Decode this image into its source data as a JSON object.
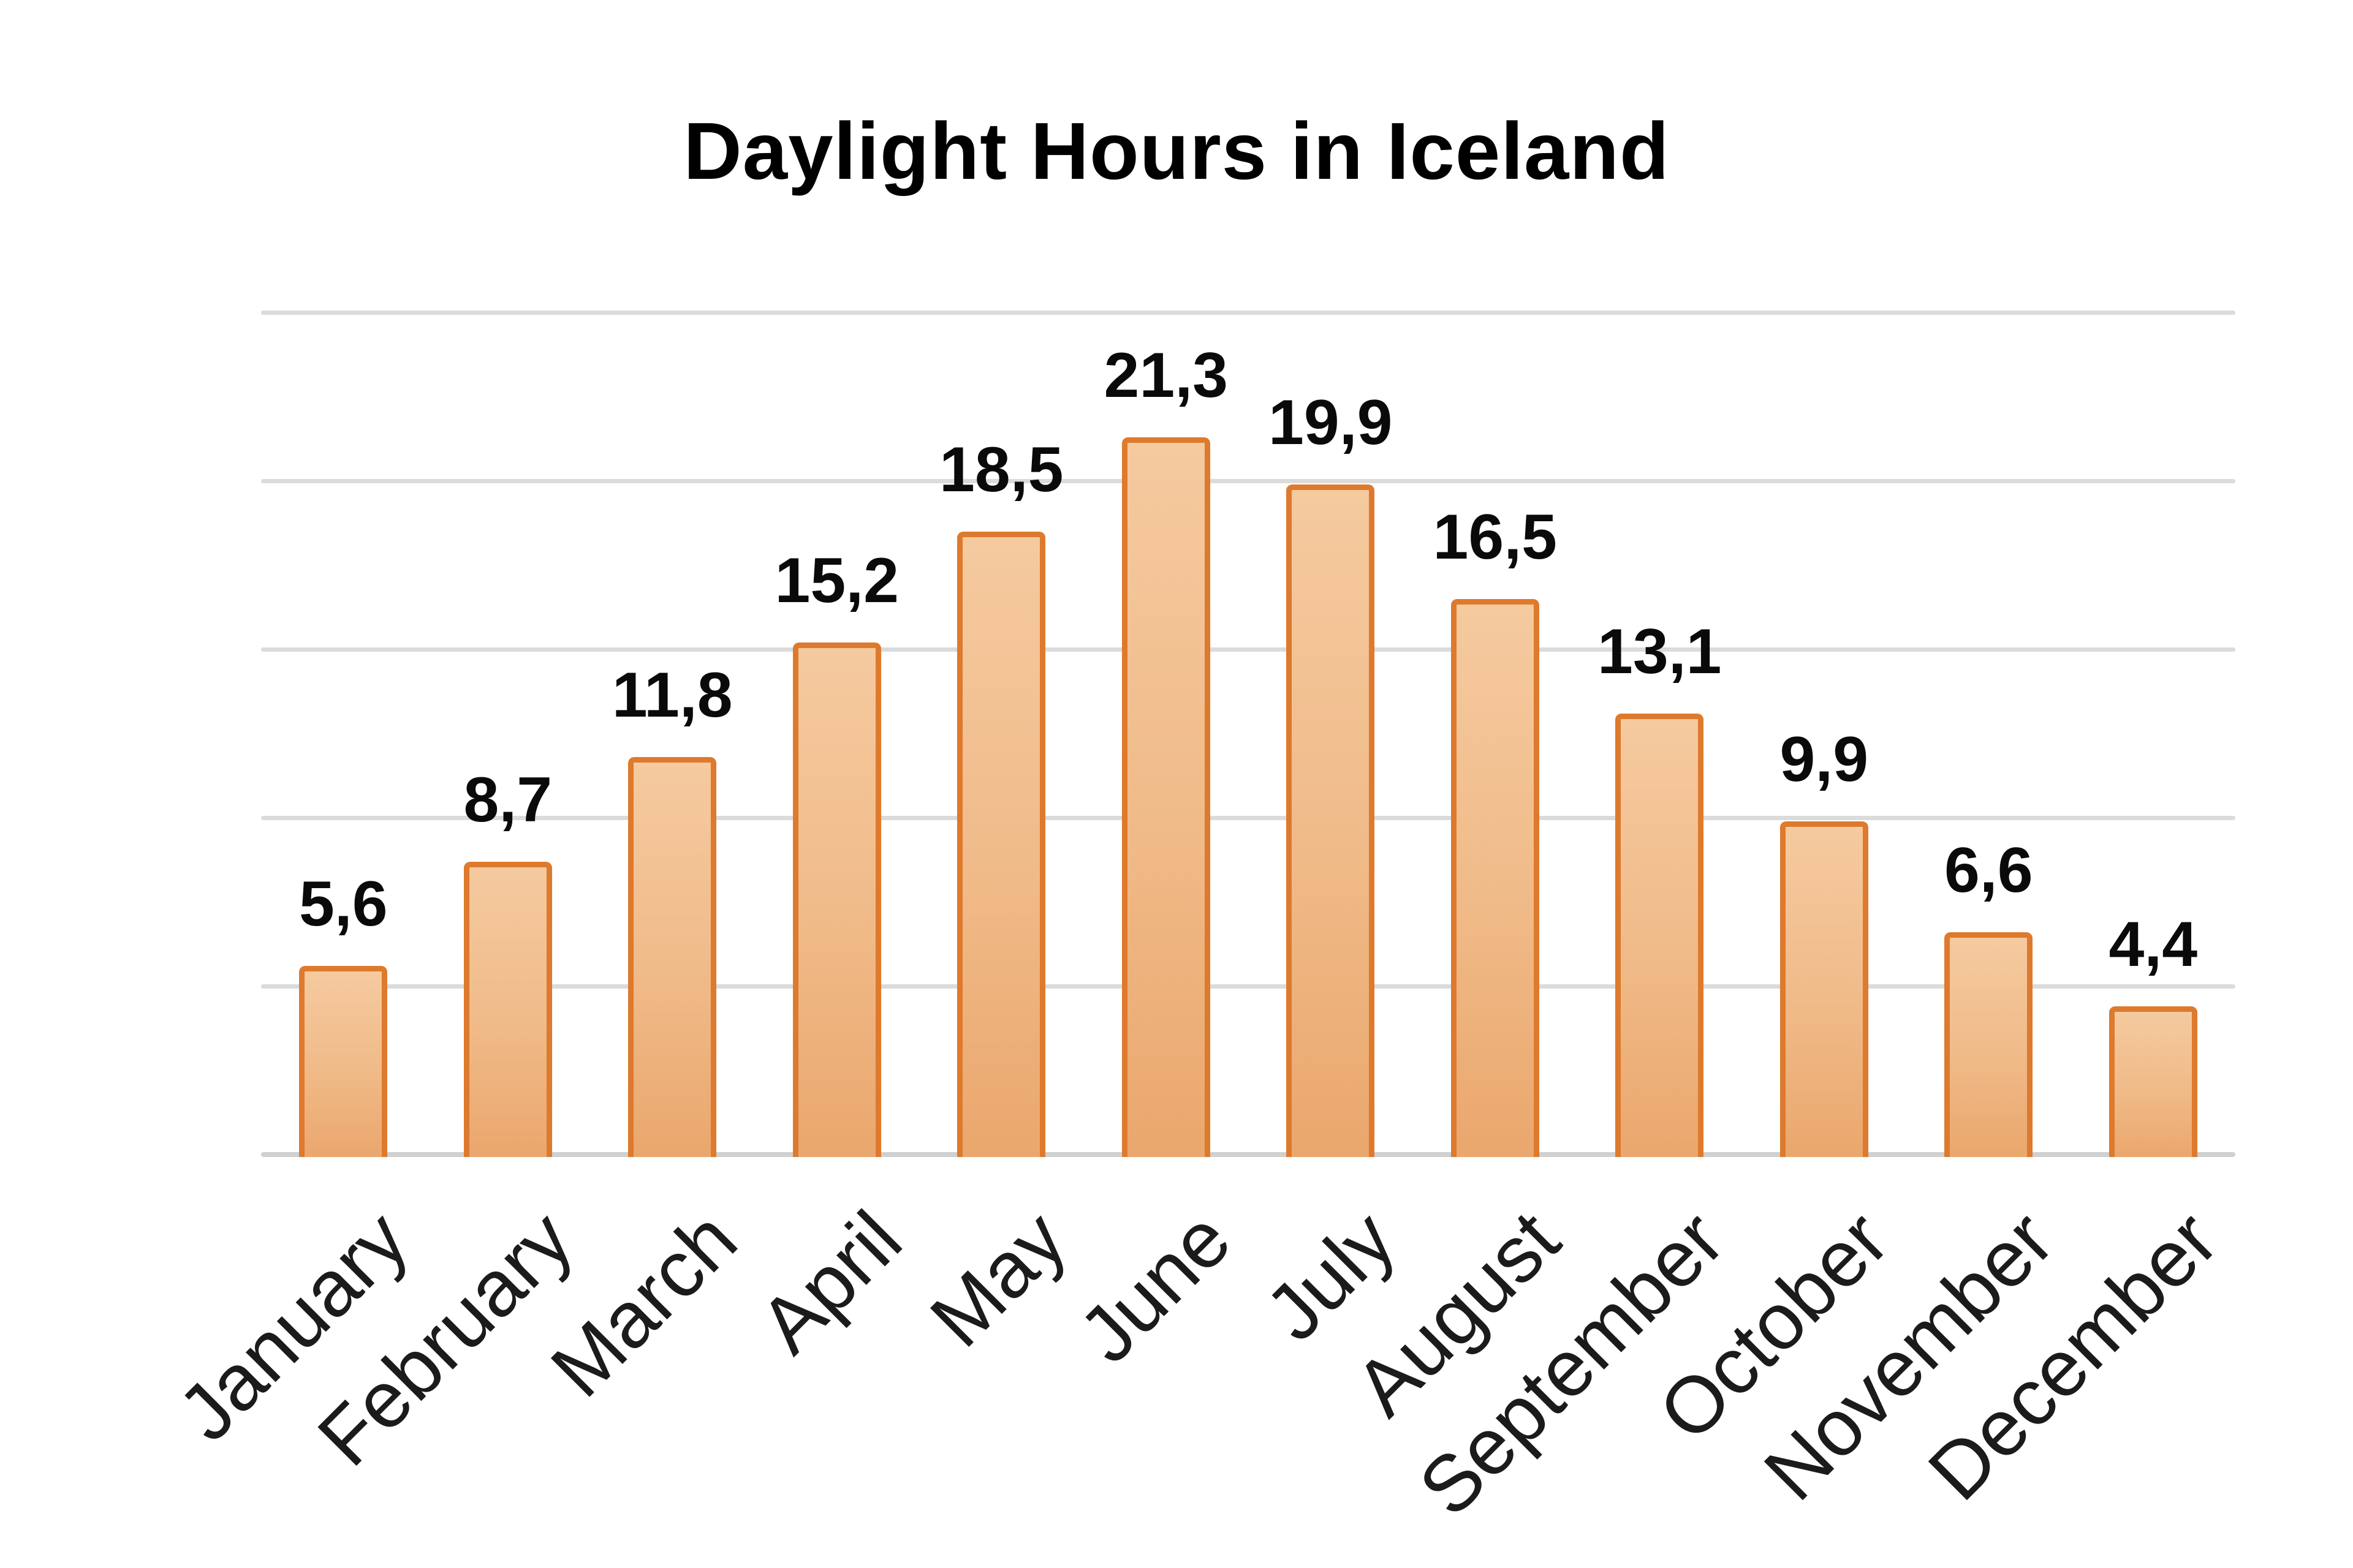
{
  "title": "Daylight Hours in Iceland",
  "chart_data": {
    "type": "bar",
    "title": "Daylight Hours in Iceland",
    "categories": [
      "January",
      "February",
      "March",
      "April",
      "May",
      "June",
      "July",
      "August",
      "September",
      "October",
      "November",
      "December"
    ],
    "values": [
      5.6,
      8.7,
      11.8,
      15.2,
      18.5,
      21.3,
      19.9,
      16.5,
      13.1,
      9.9,
      6.6,
      4.4
    ],
    "value_labels": [
      "5,6",
      "8,7",
      "11,8",
      "15,2",
      "18,5",
      "21,3",
      "19,9",
      "16,5",
      "13,1",
      "9,9",
      "6,6",
      "4,4"
    ],
    "decimal_separator": ",",
    "xlabel": "",
    "ylabel": "",
    "ylim": [
      0,
      25
    ],
    "gridline_step": 5,
    "grid": true,
    "y_axis_labels_visible": false,
    "legend": false,
    "colors": {
      "bar_fill_top": "#F5CA9F",
      "bar_fill_bottom": "#EAA76D",
      "bar_border": "#DD7A2E",
      "gridline": "#DBDBDB",
      "axis_line": "#D0D0D0",
      "title_color": "#000000",
      "value_label_color": "#0A0A0A",
      "month_label_color": "#1B1B1B",
      "background": "#FFFFFF"
    }
  }
}
